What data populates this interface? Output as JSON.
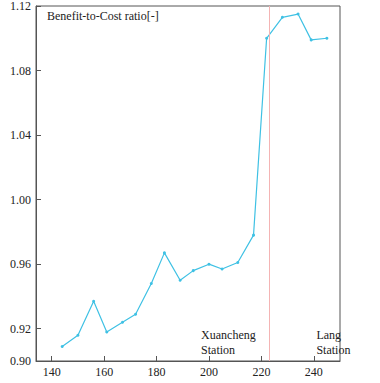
{
  "chart_data": {
    "type": "line",
    "title": "Benefit-to-Cost ratio[-]",
    "x": [
      144,
      150,
      156,
      161,
      167,
      172,
      178,
      183,
      189,
      194,
      200,
      205,
      211,
      217,
      222,
      228,
      234,
      239,
      245
    ],
    "values": [
      0.909,
      0.916,
      0.937,
      0.918,
      0.924,
      0.929,
      0.948,
      0.967,
      0.95,
      0.956,
      0.96,
      0.957,
      0.961,
      0.978,
      1.1,
      1.113,
      1.115,
      1.099,
      1.1
    ],
    "color": "#3fc1e4",
    "marker": "circle",
    "xlim": [
      134,
      250
    ],
    "xticks": [
      140,
      160,
      180,
      200,
      220,
      240
    ],
    "ylim": [
      0.9,
      1.12
    ],
    "yticks": [
      {
        "value": 0.9,
        "label": "0.90"
      },
      0.92,
      0.96,
      {
        "value": 1.0,
        "label": "1.00"
      },
      1.04,
      1.08,
      1.12
    ],
    "grid": false,
    "vlines": [
      {
        "x": 223,
        "color": "#f4b4b4"
      }
    ],
    "annotations": [
      {
        "x": 197,
        "y": 0.921,
        "text": "Xuancheng Station"
      },
      {
        "x": 241,
        "y": 0.921,
        "text": "Lang Station"
      }
    ]
  }
}
